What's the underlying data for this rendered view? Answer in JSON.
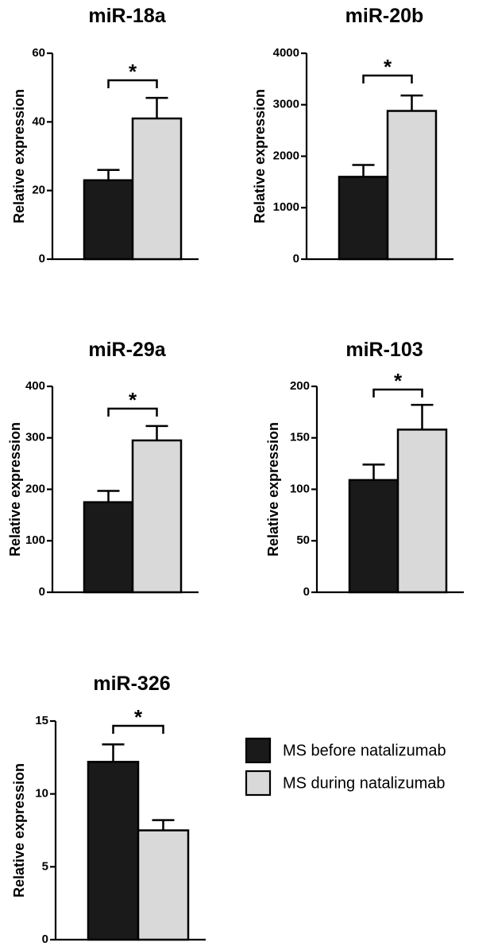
{
  "legend": [
    {
      "label": "MS before natalizumab",
      "color": "#1a1a1a"
    },
    {
      "label": "MS during natalizumab",
      "color": "#d9d9d9"
    }
  ],
  "chart_data": [
    {
      "type": "bar",
      "title": "miR-18a",
      "ylabel": "Relative expression",
      "ylim": [
        0,
        60
      ],
      "yticks": [
        0,
        20,
        40,
        60
      ],
      "categories": [
        "MS before natalizumab",
        "MS during natalizumab"
      ],
      "values": [
        23,
        41
      ],
      "errors": [
        3,
        6
      ],
      "significance": "*"
    },
    {
      "type": "bar",
      "title": "miR-20b",
      "ylabel": "Relative expression",
      "ylim": [
        0,
        4000
      ],
      "yticks": [
        0,
        1000,
        2000,
        3000,
        4000
      ],
      "categories": [
        "MS before natalizumab",
        "MS during natalizumab"
      ],
      "values": [
        1600,
        2880
      ],
      "errors": [
        230,
        300
      ],
      "significance": "*"
    },
    {
      "type": "bar",
      "title": "miR-29a",
      "ylabel": "Relative expression",
      "ylim": [
        0,
        400
      ],
      "yticks": [
        0,
        100,
        200,
        300,
        400
      ],
      "categories": [
        "MS before natalizumab",
        "MS during natalizumab"
      ],
      "values": [
        175,
        295
      ],
      "errors": [
        22,
        28
      ],
      "significance": "*"
    },
    {
      "type": "bar",
      "title": "miR-103",
      "ylabel": "Relative expression",
      "ylim": [
        0,
        200
      ],
      "yticks": [
        0,
        50,
        100,
        150,
        200
      ],
      "categories": [
        "MS before natalizumab",
        "MS during natalizumab"
      ],
      "values": [
        109,
        158
      ],
      "errors": [
        15,
        24
      ],
      "significance": "*"
    },
    {
      "type": "bar",
      "title": "miR-326",
      "ylabel": "Relative expression",
      "ylim": [
        0,
        15
      ],
      "yticks": [
        0,
        5,
        10,
        15
      ],
      "categories": [
        "MS before natalizumab",
        "MS during natalizumab"
      ],
      "values": [
        12.2,
        7.5
      ],
      "errors": [
        1.2,
        0.7
      ],
      "significance": "*"
    }
  ]
}
